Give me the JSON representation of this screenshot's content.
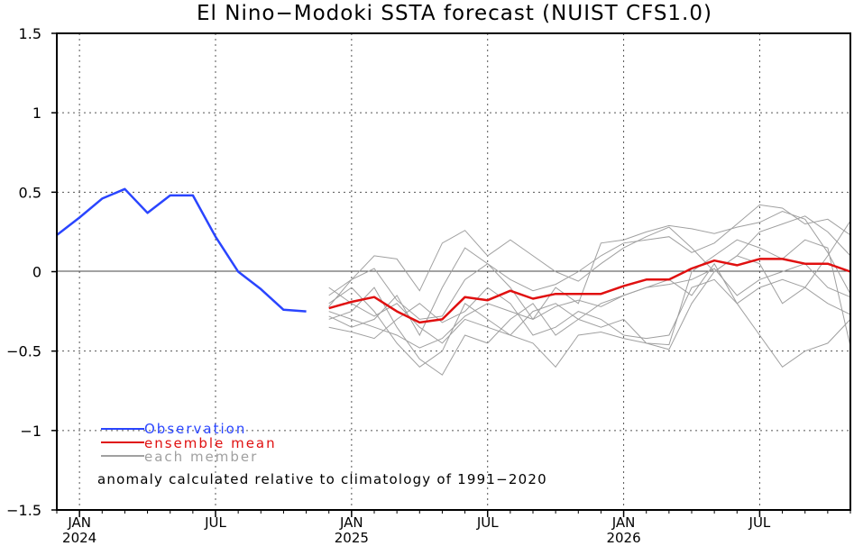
{
  "chart_data": {
    "type": "line",
    "title": "El Nino−Modoki SSTA forecast (NUIST CFS1.0)",
    "xlabel": "",
    "ylabel": "",
    "ylim": [
      -1.5,
      1.5
    ],
    "yticks": [
      "1.5",
      "1",
      "0.5",
      "0",
      "−0.5",
      "−1",
      "−1.5"
    ],
    "ytick_values": [
      1.5,
      1,
      0.5,
      0,
      -0.5,
      -1,
      -1.5
    ],
    "xlim": [
      "2023-12",
      "2026-11"
    ],
    "xticks": [
      {
        "date": "2024-01",
        "month": "JAN",
        "year": "2024"
      },
      {
        "date": "2024-07",
        "month": "JUL",
        "year": ""
      },
      {
        "date": "2025-01",
        "month": "JAN",
        "year": "2025"
      },
      {
        "date": "2025-07",
        "month": "JUL",
        "year": ""
      },
      {
        "date": "2026-01",
        "month": "JAN",
        "year": "2026"
      },
      {
        "date": "2026-07",
        "month": "JUL",
        "year": ""
      }
    ],
    "grid": true,
    "legend_position": "bottom-left",
    "note": "anomaly calculated relative to climatology of 1991−2020",
    "series": [
      {
        "name": "Observation",
        "color": "#2a45ff",
        "x": [
          "2023-12",
          "2024-01",
          "2024-02",
          "2024-03",
          "2024-04",
          "2024-05",
          "2024-06",
          "2024-07",
          "2024-08",
          "2024-09",
          "2024-10",
          "2024-11"
        ],
        "values": [
          0.23,
          0.34,
          0.46,
          0.52,
          0.37,
          0.48,
          0.48,
          0.22,
          0.0,
          -0.11,
          -0.24,
          -0.25
        ]
      },
      {
        "name": "ensemble mean",
        "color": "#e01010",
        "x": [
          "2024-12",
          "2025-01",
          "2025-02",
          "2025-03",
          "2025-04",
          "2025-05",
          "2025-06",
          "2025-07",
          "2025-08",
          "2025-09",
          "2025-10",
          "2025-11",
          "2025-12",
          "2026-01",
          "2026-02",
          "2026-03",
          "2026-04",
          "2026-05",
          "2026-06",
          "2026-07",
          "2026-08",
          "2026-09",
          "2026-10",
          "2026-11"
        ],
        "values": [
          -0.23,
          -0.19,
          -0.16,
          -0.25,
          -0.32,
          -0.3,
          -0.16,
          -0.18,
          -0.12,
          -0.17,
          -0.14,
          -0.14,
          -0.14,
          -0.09,
          -0.05,
          -0.05,
          0.02,
          0.07,
          0.04,
          0.08,
          0.08,
          0.05,
          0.05,
          0.0
        ]
      },
      {
        "name": "each member",
        "color": "#a0a0a0",
        "members_x": [
          "2024-12",
          "2025-01",
          "2025-02",
          "2025-03",
          "2025-04",
          "2025-05",
          "2025-06",
          "2025-07",
          "2025-08",
          "2025-09",
          "2025-10",
          "2025-11",
          "2025-12",
          "2026-01",
          "2026-02",
          "2026-03",
          "2026-04",
          "2026-05",
          "2026-06",
          "2026-07",
          "2026-08",
          "2026-09",
          "2026-10",
          "2026-11"
        ],
        "members": [
          [
            -0.15,
            -0.05,
            0.1,
            0.08,
            -0.12,
            0.18,
            0.26,
            0.1,
            0.2,
            0.1,
            0.0,
            -0.06,
            0.05,
            0.15,
            0.22,
            0.28,
            0.15,
            0.0,
            0.1,
            0.25,
            0.3,
            0.35,
            0.25,
            0.1
          ],
          [
            -0.28,
            -0.35,
            -0.3,
            -0.15,
            -0.4,
            -0.1,
            0.15,
            0.05,
            -0.1,
            -0.3,
            -0.1,
            -0.2,
            0.18,
            0.2,
            0.25,
            0.29,
            0.27,
            0.24,
            0.28,
            0.31,
            0.38,
            0.33,
            0.12,
            -0.14
          ],
          [
            -0.2,
            -0.1,
            -0.25,
            -0.45,
            -0.6,
            -0.5,
            -0.2,
            -0.3,
            -0.4,
            -0.25,
            -0.2,
            -0.3,
            -0.35,
            -0.3,
            -0.45,
            -0.49,
            -0.2,
            0.0,
            0.1,
            0.05,
            -0.2,
            -0.1,
            0.1,
            0.32
          ],
          [
            -0.35,
            -0.38,
            -0.42,
            -0.3,
            -0.2,
            -0.32,
            -0.25,
            -0.1,
            -0.2,
            -0.4,
            -0.35,
            -0.25,
            -0.3,
            -0.4,
            -0.42,
            -0.4,
            -0.1,
            -0.05,
            -0.2,
            -0.1,
            -0.05,
            -0.1,
            -0.2,
            -0.27
          ],
          [
            -0.1,
            -0.2,
            -0.28,
            -0.2,
            -0.35,
            -0.45,
            -0.3,
            -0.35,
            -0.4,
            -0.45,
            -0.6,
            -0.4,
            -0.38,
            -0.42,
            -0.45,
            -0.46,
            0.0,
            0.1,
            0.2,
            0.15,
            0.08,
            0.2,
            0.15,
            -0.47
          ],
          [
            -0.3,
            -0.25,
            -0.1,
            -0.35,
            -0.55,
            -0.65,
            -0.4,
            -0.45,
            -0.3,
            -0.2,
            -0.4,
            -0.3,
            -0.2,
            -0.15,
            -0.1,
            -0.05,
            -0.15,
            0.05,
            -0.2,
            -0.4,
            -0.6,
            -0.5,
            -0.45,
            -0.3
          ],
          [
            -0.22,
            -0.05,
            0.02,
            -0.18,
            -0.3,
            -0.28,
            -0.05,
            0.05,
            -0.05,
            -0.12,
            -0.08,
            0.0,
            0.1,
            0.18,
            0.2,
            0.22,
            0.12,
            0.18,
            0.3,
            0.42,
            0.4,
            0.3,
            0.33,
            0.23
          ],
          [
            -0.25,
            -0.3,
            -0.35,
            -0.4,
            -0.48,
            -0.42,
            -0.28,
            -0.2,
            -0.25,
            -0.3,
            -0.22,
            -0.18,
            -0.22,
            -0.15,
            -0.1,
            -0.08,
            -0.05,
            0.02,
            -0.15,
            -0.05,
            0.0,
            0.05,
            -0.1,
            -0.16
          ]
        ]
      }
    ]
  }
}
